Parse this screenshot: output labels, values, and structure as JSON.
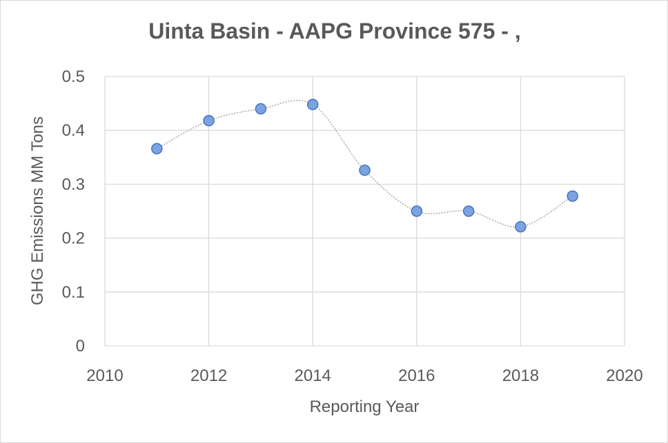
{
  "chart_data": {
    "type": "scatter",
    "title": "Uinta Basin - AAPG Province 575 - ,",
    "xlabel": "Reporting Year",
    "ylabel": "GHG Emissions MM Tons",
    "xlim": [
      2010,
      2020
    ],
    "ylim": [
      0,
      0.5
    ],
    "x_ticks": [
      "2010",
      "2012",
      "2014",
      "2016",
      "2018",
      "2020"
    ],
    "y_ticks": [
      "0",
      "0.1",
      "0.2",
      "0.3",
      "0.4",
      "0.5"
    ],
    "grid": true,
    "smoothed_trendline": true,
    "marker_color": "#7BA3E0",
    "marker_edge_color": "#4472C4",
    "series": [
      {
        "x": [
          2011,
          2012,
          2013,
          2014,
          2015,
          2016,
          2017,
          2018,
          2019
        ],
        "y": [
          0.366,
          0.418,
          0.44,
          0.448,
          0.326,
          0.25,
          0.25,
          0.221,
          0.278
        ]
      }
    ]
  }
}
